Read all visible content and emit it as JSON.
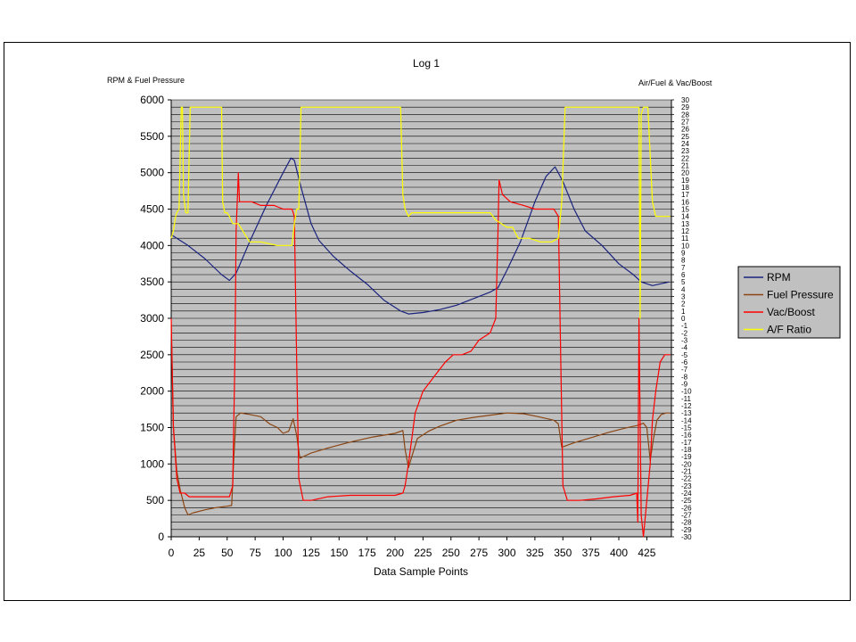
{
  "chart_data": {
    "type": "line",
    "title": "Log 1",
    "xlabel": "Data Sample Points",
    "ylabel_left": "RPM & Fuel Pressure",
    "ylabel_right": "Air/Fuel & Vac/Boost",
    "xlim": [
      0,
      447
    ],
    "ylim_left": [
      0,
      6000
    ],
    "ylim_right": [
      -30,
      30
    ],
    "x_ticks": [
      0,
      25,
      50,
      75,
      100,
      125,
      150,
      175,
      200,
      225,
      250,
      275,
      300,
      325,
      350,
      375,
      400,
      425
    ],
    "y_ticks_left": [
      0,
      500,
      1000,
      1500,
      2000,
      2500,
      3000,
      3500,
      4000,
      4500,
      5000,
      5500,
      6000
    ],
    "y_ticks_right": [
      30,
      29,
      28,
      27,
      26,
      25,
      24,
      23,
      22,
      21,
      20,
      19,
      18,
      17,
      16,
      15,
      14,
      13,
      12,
      11,
      10,
      9,
      8,
      7,
      6,
      5,
      4,
      3,
      2,
      1,
      0,
      -1,
      -2,
      -3,
      -4,
      -5,
      -6,
      -7,
      -8,
      -9,
      -10,
      -11,
      -12,
      -13,
      -14,
      -15,
      -16,
      -17,
      -18,
      -19,
      -20,
      -21,
      -22,
      -23,
      -24,
      -25,
      -26,
      -27,
      -28,
      -29,
      -30
    ],
    "grid": "horizontal",
    "plot_background": "#c0c0c0",
    "legend_position": "right",
    "series": [
      {
        "name": "RPM",
        "axis": "left",
        "color": "#1a237e",
        "points": [
          [
            0,
            4150
          ],
          [
            5,
            4100
          ],
          [
            15,
            4000
          ],
          [
            30,
            3820
          ],
          [
            45,
            3600
          ],
          [
            52,
            3520
          ],
          [
            58,
            3620
          ],
          [
            70,
            4050
          ],
          [
            85,
            4550
          ],
          [
            100,
            5000
          ],
          [
            107,
            5200
          ],
          [
            110,
            5170
          ],
          [
            116,
            4800
          ],
          [
            125,
            4300
          ],
          [
            132,
            4070
          ],
          [
            145,
            3850
          ],
          [
            160,
            3650
          ],
          [
            175,
            3470
          ],
          [
            190,
            3250
          ],
          [
            205,
            3100
          ],
          [
            212,
            3060
          ],
          [
            225,
            3080
          ],
          [
            240,
            3120
          ],
          [
            255,
            3180
          ],
          [
            270,
            3270
          ],
          [
            285,
            3360
          ],
          [
            292,
            3420
          ],
          [
            300,
            3660
          ],
          [
            312,
            4050
          ],
          [
            325,
            4600
          ],
          [
            335,
            4950
          ],
          [
            343,
            5080
          ],
          [
            350,
            4880
          ],
          [
            360,
            4500
          ],
          [
            370,
            4200
          ],
          [
            385,
            4000
          ],
          [
            400,
            3750
          ],
          [
            413,
            3600
          ],
          [
            420,
            3500
          ],
          [
            430,
            3450
          ],
          [
            445,
            3500
          ]
        ]
      },
      {
        "name": "Fuel Pressure",
        "axis": "left",
        "color": "#8b4513",
        "points": [
          [
            0,
            2900
          ],
          [
            2,
            1500
          ],
          [
            5,
            900
          ],
          [
            8,
            650
          ],
          [
            12,
            400
          ],
          [
            15,
            300
          ],
          [
            20,
            330
          ],
          [
            30,
            370
          ],
          [
            40,
            400
          ],
          [
            50,
            420
          ],
          [
            54,
            430
          ],
          [
            56,
            1100
          ],
          [
            58,
            1650
          ],
          [
            62,
            1700
          ],
          [
            70,
            1680
          ],
          [
            80,
            1650
          ],
          [
            88,
            1550
          ],
          [
            95,
            1500
          ],
          [
            100,
            1420
          ],
          [
            105,
            1450
          ],
          [
            109,
            1620
          ],
          [
            112,
            1400
          ],
          [
            115,
            1080
          ],
          [
            125,
            1150
          ],
          [
            140,
            1220
          ],
          [
            160,
            1300
          ],
          [
            180,
            1370
          ],
          [
            200,
            1420
          ],
          [
            207,
            1460
          ],
          [
            209,
            1200
          ],
          [
            212,
            950
          ],
          [
            215,
            1100
          ],
          [
            220,
            1350
          ],
          [
            230,
            1450
          ],
          [
            240,
            1520
          ],
          [
            255,
            1600
          ],
          [
            270,
            1640
          ],
          [
            285,
            1670
          ],
          [
            300,
            1700
          ],
          [
            315,
            1690
          ],
          [
            328,
            1650
          ],
          [
            342,
            1600
          ],
          [
            346,
            1550
          ],
          [
            349,
            1230
          ],
          [
            360,
            1290
          ],
          [
            375,
            1360
          ],
          [
            390,
            1430
          ],
          [
            405,
            1490
          ],
          [
            417,
            1530
          ],
          [
            422,
            1560
          ],
          [
            425,
            1500
          ],
          [
            428,
            1050
          ],
          [
            431,
            1350
          ],
          [
            434,
            1600
          ],
          [
            438,
            1680
          ],
          [
            442,
            1700
          ],
          [
            446,
            1700
          ]
        ]
      },
      {
        "name": "Vac/Boost",
        "axis": "right",
        "color": "#ff0000",
        "points": [
          [
            0,
            0
          ],
          [
            2,
            -15
          ],
          [
            5,
            -22
          ],
          [
            8,
            -24
          ],
          [
            12,
            -24
          ],
          [
            16,
            -24.5
          ],
          [
            25,
            -24.5
          ],
          [
            40,
            -24.5
          ],
          [
            52,
            -24.5
          ],
          [
            55,
            -23
          ],
          [
            57,
            -5
          ],
          [
            58,
            12
          ],
          [
            60,
            20
          ],
          [
            61,
            16
          ],
          [
            65,
            16
          ],
          [
            72,
            16
          ],
          [
            80,
            15.5
          ],
          [
            92,
            15.5
          ],
          [
            100,
            15
          ],
          [
            108,
            15
          ],
          [
            110,
            14
          ],
          [
            112,
            -5
          ],
          [
            114,
            -22
          ],
          [
            118,
            -25
          ],
          [
            125,
            -25
          ],
          [
            140,
            -24.5
          ],
          [
            160,
            -24.3
          ],
          [
            180,
            -24.3
          ],
          [
            200,
            -24.3
          ],
          [
            207,
            -24
          ],
          [
            209,
            -23
          ],
          [
            212,
            -20
          ],
          [
            218,
            -13
          ],
          [
            225,
            -10
          ],
          [
            235,
            -8
          ],
          [
            245,
            -6
          ],
          [
            252,
            -5
          ],
          [
            260,
            -5
          ],
          [
            268,
            -4.5
          ],
          [
            275,
            -3
          ],
          [
            285,
            -2
          ],
          [
            290,
            0
          ],
          [
            292,
            12
          ],
          [
            293,
            19
          ],
          [
            296,
            17
          ],
          [
            303,
            16
          ],
          [
            315,
            15.5
          ],
          [
            325,
            15
          ],
          [
            342,
            15
          ],
          [
            346,
            14
          ],
          [
            348,
            -5
          ],
          [
            350,
            -23
          ],
          [
            354,
            -25
          ],
          [
            365,
            -25
          ],
          [
            380,
            -24.8
          ],
          [
            395,
            -24.5
          ],
          [
            410,
            -24.3
          ],
          [
            416,
            -24
          ],
          [
            417,
            -28
          ],
          [
            418,
            0
          ],
          [
            420,
            -27
          ],
          [
            422,
            -30
          ],
          [
            425,
            -25
          ],
          [
            428,
            -20
          ],
          [
            430,
            -14
          ],
          [
            433,
            -10
          ],
          [
            437,
            -6
          ],
          [
            441,
            -5
          ],
          [
            446,
            -5
          ]
        ]
      },
      {
        "name": "A/F Ratio",
        "axis": "right",
        "color": "#ffff00",
        "points": [
          [
            0,
            11
          ],
          [
            2,
            12
          ],
          [
            4,
            14
          ],
          [
            5,
            14.5
          ],
          [
            7,
            15
          ],
          [
            9,
            29
          ],
          [
            10,
            29
          ],
          [
            11,
            17
          ],
          [
            13,
            14.5
          ],
          [
            15,
            14.5
          ],
          [
            17,
            29
          ],
          [
            45,
            29
          ],
          [
            46,
            16
          ],
          [
            48,
            14.5
          ],
          [
            50,
            14.5
          ],
          [
            52,
            14
          ],
          [
            55,
            13
          ],
          [
            60,
            13
          ],
          [
            66,
            11.5
          ],
          [
            70,
            10.5
          ],
          [
            80,
            10.5
          ],
          [
            95,
            10
          ],
          [
            105,
            10
          ],
          [
            108,
            10
          ],
          [
            110,
            13
          ],
          [
            112,
            15
          ],
          [
            114,
            15
          ],
          [
            116,
            29
          ],
          [
            205,
            29
          ],
          [
            207,
            17
          ],
          [
            209,
            15
          ],
          [
            212,
            14
          ],
          [
            215,
            14.5
          ],
          [
            250,
            14.5
          ],
          [
            285,
            14.5
          ],
          [
            290,
            13.5
          ],
          [
            300,
            12.5
          ],
          [
            305,
            12.5
          ],
          [
            310,
            11
          ],
          [
            320,
            11
          ],
          [
            330,
            10.5
          ],
          [
            340,
            10.5
          ],
          [
            346,
            11
          ],
          [
            349,
            16
          ],
          [
            352,
            29
          ],
          [
            418,
            29
          ],
          [
            419,
            0
          ],
          [
            420,
            28
          ],
          [
            422,
            29
          ],
          [
            426,
            29
          ],
          [
            430,
            16
          ],
          [
            433,
            14
          ],
          [
            438,
            14
          ],
          [
            446,
            14
          ]
        ]
      }
    ]
  }
}
